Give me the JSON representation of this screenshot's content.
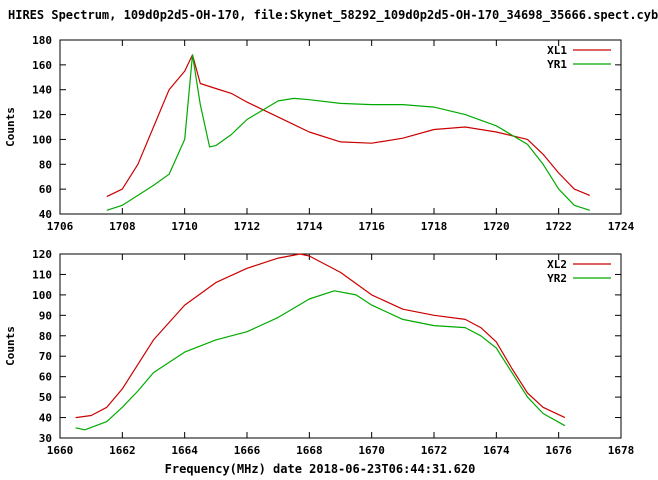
{
  "title": "HIRES Spectrum, 109d0p2d5-OH-170, file:Skynet_58292_109d0p2d5-OH-170_34698_35666.spect.cyb",
  "xlabel": "Frequency(MHz) date 2018-06-23T06:44:31.620",
  "colors": {
    "red": "#cc0000",
    "green": "#00aa00"
  },
  "chart_data": [
    {
      "type": "line",
      "ylabel": "Counts",
      "xlim": [
        1706,
        1724
      ],
      "ylim": [
        40,
        180
      ],
      "xticks": [
        1706,
        1708,
        1710,
        1712,
        1714,
        1716,
        1718,
        1720,
        1722,
        1724
      ],
      "yticks": [
        40,
        60,
        80,
        100,
        120,
        140,
        160,
        180
      ],
      "legend_position": "top-right",
      "grid": false,
      "series": [
        {
          "name": "XL1",
          "color": "#cc0000",
          "x": [
            1707.5,
            1708,
            1708.5,
            1709,
            1709.5,
            1710,
            1710.25,
            1710.5,
            1711,
            1711.5,
            1712,
            1713,
            1714,
            1715,
            1716,
            1717,
            1718,
            1719,
            1720,
            1721,
            1721.5,
            1722,
            1722.5,
            1723
          ],
          "y": [
            54,
            60,
            80,
            110,
            140,
            155,
            168,
            145,
            141,
            137,
            130,
            118,
            106,
            98,
            97,
            101,
            108,
            110,
            106,
            100,
            88,
            73,
            60,
            55
          ]
        },
        {
          "name": "YR1",
          "color": "#00aa00",
          "x": [
            1707.5,
            1708,
            1709,
            1709.5,
            1710,
            1710.25,
            1710.5,
            1710.8,
            1711,
            1711.5,
            1712,
            1713,
            1713.5,
            1714,
            1715,
            1716,
            1717,
            1718,
            1719,
            1720,
            1721,
            1721.5,
            1722,
            1722.5,
            1723
          ],
          "y": [
            43,
            47,
            63,
            72,
            100,
            168,
            128,
            94,
            95,
            104,
            116,
            131,
            133,
            132,
            129,
            128,
            128,
            126,
            120,
            111,
            96,
            80,
            60,
            47,
            43
          ]
        }
      ]
    },
    {
      "type": "line",
      "ylabel": "Counts",
      "xlim": [
        1660,
        1678
      ],
      "ylim": [
        30,
        120
      ],
      "xticks": [
        1660,
        1662,
        1664,
        1666,
        1668,
        1670,
        1672,
        1674,
        1676,
        1678
      ],
      "yticks": [
        30,
        40,
        50,
        60,
        70,
        80,
        90,
        100,
        110,
        120
      ],
      "legend_position": "top-right",
      "grid": false,
      "series": [
        {
          "name": "XL2",
          "color": "#cc0000",
          "x": [
            1660.5,
            1661,
            1661.5,
            1662,
            1662.5,
            1663,
            1664,
            1665,
            1666,
            1667,
            1667.7,
            1668,
            1669,
            1670,
            1671,
            1672,
            1673,
            1673.5,
            1674,
            1674.5,
            1675,
            1675.5,
            1676.2
          ],
          "y": [
            40,
            41,
            45,
            54,
            66,
            78,
            95,
            106,
            113,
            118,
            120,
            119,
            111,
            100,
            93,
            90,
            88,
            84,
            77,
            64,
            52,
            45,
            40
          ]
        },
        {
          "name": "YR2",
          "color": "#00aa00",
          "x": [
            1660.5,
            1660.8,
            1661.5,
            1662,
            1662.5,
            1663,
            1664,
            1665,
            1666,
            1667,
            1668,
            1668.8,
            1669.5,
            1670,
            1671,
            1672,
            1673,
            1673.5,
            1674,
            1674.5,
            1675,
            1675.5,
            1676.2
          ],
          "y": [
            35,
            34,
            38,
            45,
            53,
            62,
            72,
            78,
            82,
            89,
            98,
            102,
            100,
            95,
            88,
            85,
            84,
            80,
            74,
            62,
            50,
            42,
            36
          ]
        }
      ]
    }
  ]
}
